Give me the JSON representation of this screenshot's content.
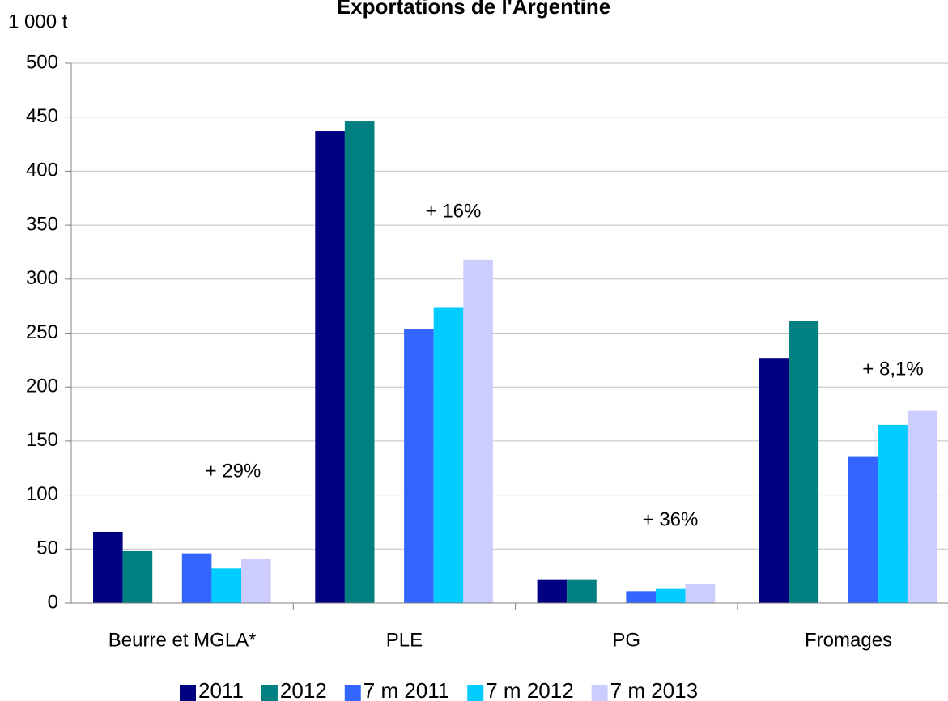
{
  "chart_data": {
    "type": "bar",
    "title": "Exportations de l'Argentine",
    "y_label": "1 000 t",
    "categories": [
      "Beurre et MGLA*",
      "PLE",
      "PG",
      "Fromages"
    ],
    "series": [
      {
        "name": "2011",
        "color": "#000080",
        "values": [
          66,
          437,
          22,
          227
        ]
      },
      {
        "name": "2012",
        "color": "#008080",
        "values": [
          48,
          446,
          22,
          261
        ]
      },
      {
        "name": "7 m 2011",
        "color": "#3366ff",
        "values": [
          46,
          254,
          11,
          136
        ]
      },
      {
        "name": "7 m 2012",
        "color": "#00ccff",
        "values": [
          32,
          274,
          13,
          165
        ]
      },
      {
        "name": "7 m 2013",
        "color": "#ccccff",
        "values": [
          41,
          318,
          18,
          178
        ]
      }
    ],
    "annotations": [
      "+ 29%",
      "+ 16%",
      "+ 36%",
      "+ 8,1%"
    ],
    "ylim": [
      0,
      500
    ],
    "yticks": [
      0,
      50,
      100,
      150,
      200,
      250,
      300,
      350,
      400,
      450,
      500
    ],
    "grid": true,
    "legend": "bottom"
  }
}
